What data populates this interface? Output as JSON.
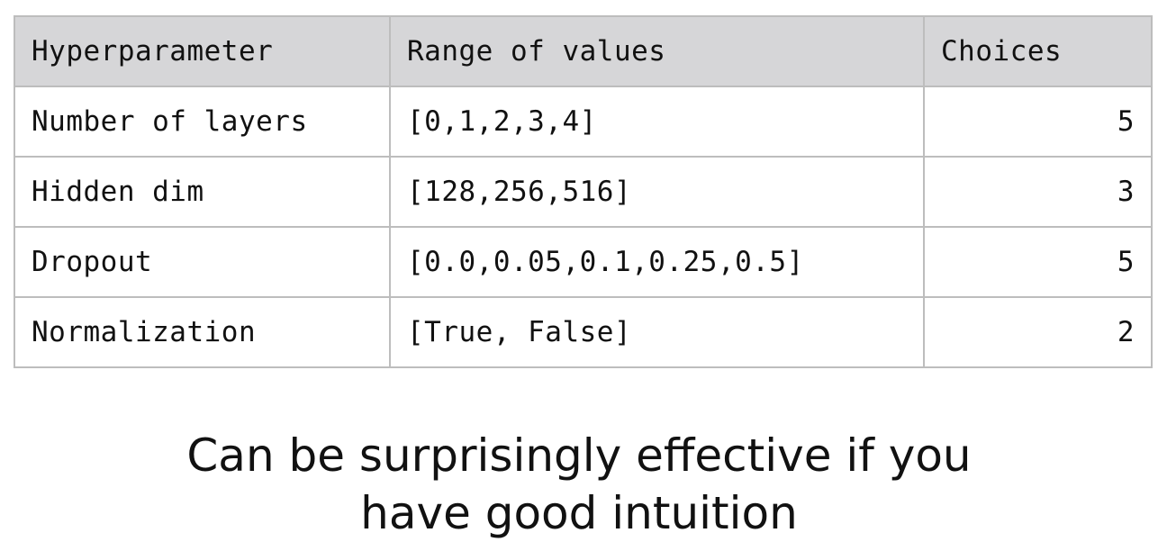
{
  "table": {
    "headers": [
      "Hyperparameter",
      "Range of values",
      "Choices"
    ],
    "rows": [
      [
        "Number of layers",
        "[0,1,2,3,4]",
        "5"
      ],
      [
        "Hidden dim",
        "[128,256,516]",
        "3"
      ],
      [
        "Dropout",
        "[0.0,0.05,0.1,0.25,0.5]",
        "5"
      ],
      [
        "Normalization",
        "[True, False]",
        "2"
      ]
    ]
  },
  "caption": {
    "line1": "Can be surprisingly effective if you",
    "line2": "have good intuition"
  }
}
